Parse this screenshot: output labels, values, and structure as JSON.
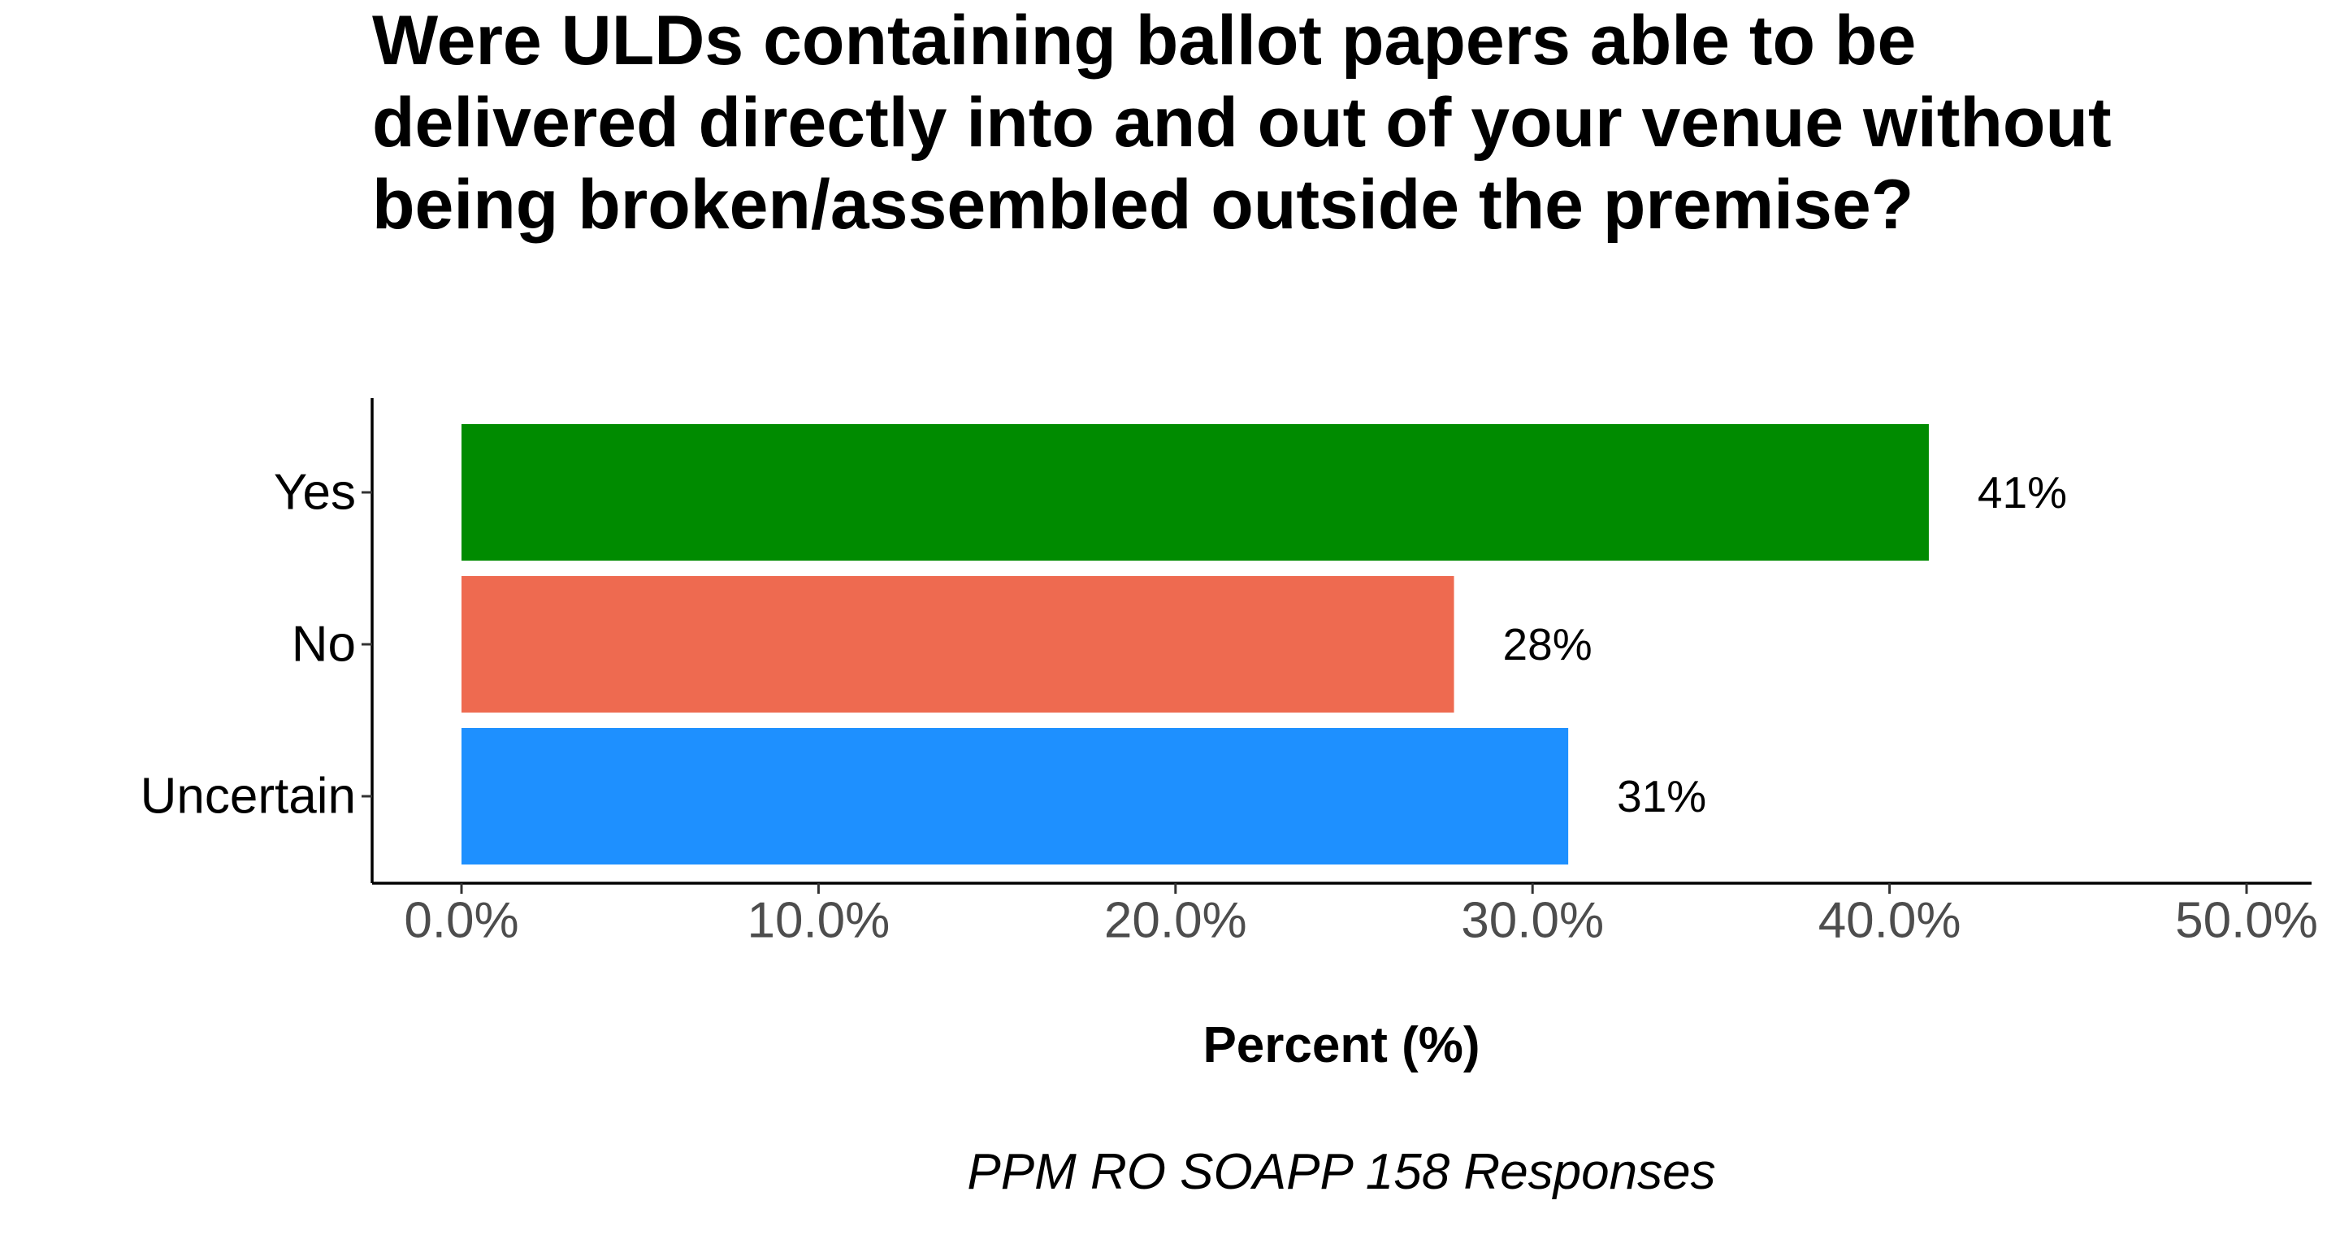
{
  "chart_data": {
    "type": "bar",
    "orientation": "horizontal",
    "title": "Were ULDs containing ballot papers able to be delivered directly into and out of your venue without being broken/assembled outside the premise?",
    "xlabel": "Percent (%)",
    "ylabel": "",
    "caption": "PPM RO SOAPP 158 Responses",
    "categories": [
      "Yes",
      "No",
      "Uncertain"
    ],
    "values": [
      41.1,
      27.8,
      31.0
    ],
    "data_labels": [
      "41%",
      "28%",
      "31%"
    ],
    "colors": [
      "#008B00",
      "#EE6A50",
      "#1E90FF"
    ],
    "xlim": [
      0,
      50
    ],
    "x_ticks": [
      0,
      10,
      20,
      30,
      40,
      50
    ],
    "x_tick_labels": [
      "0.0%",
      "10.0%",
      "20.0%",
      "30.0%",
      "40.0%",
      "50.0%"
    ],
    "grid": false,
    "legend": "none"
  }
}
